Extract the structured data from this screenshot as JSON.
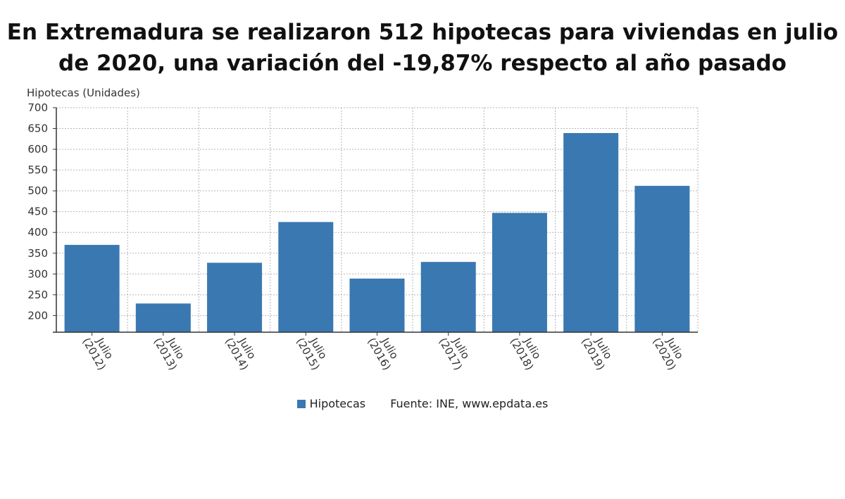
{
  "title": {
    "line1": "En Extremadura se realizaron 512 hipotecas para viviendas en julio",
    "line2": "de 2020, una variación del -19,87% respecto al año pasado"
  },
  "legend": {
    "series_label": "Hipotecas",
    "source": "Fuente: INE, www.epdata.es"
  },
  "colors": {
    "bar": "#3a78b1",
    "grid": "#b5b5b5",
    "axis": "#333333"
  },
  "chart_data": {
    "type": "bar",
    "ylabel": "Hipotecas (Unidades)",
    "xlabel": "",
    "ylim": [
      160,
      700
    ],
    "yticks": [
      200,
      250,
      300,
      350,
      400,
      450,
      500,
      550,
      600,
      650,
      700
    ],
    "grid": true,
    "legend_position": "bottom",
    "categories": [
      [
        "Julio",
        "(2012)"
      ],
      [
        "Julio",
        "(2013)"
      ],
      [
        "Julio",
        "(2014)"
      ],
      [
        "Julio",
        "(2015)"
      ],
      [
        "Julio",
        "(2016)"
      ],
      [
        "Julio",
        "(2017)"
      ],
      [
        "Julio",
        "(2018)"
      ],
      [
        "Julio",
        "(2019)"
      ],
      [
        "Julio",
        "(2020)"
      ]
    ],
    "series": [
      {
        "name": "Hipotecas",
        "values": [
          370,
          229,
          327,
          425,
          289,
          329,
          447,
          639,
          512
        ]
      }
    ]
  }
}
